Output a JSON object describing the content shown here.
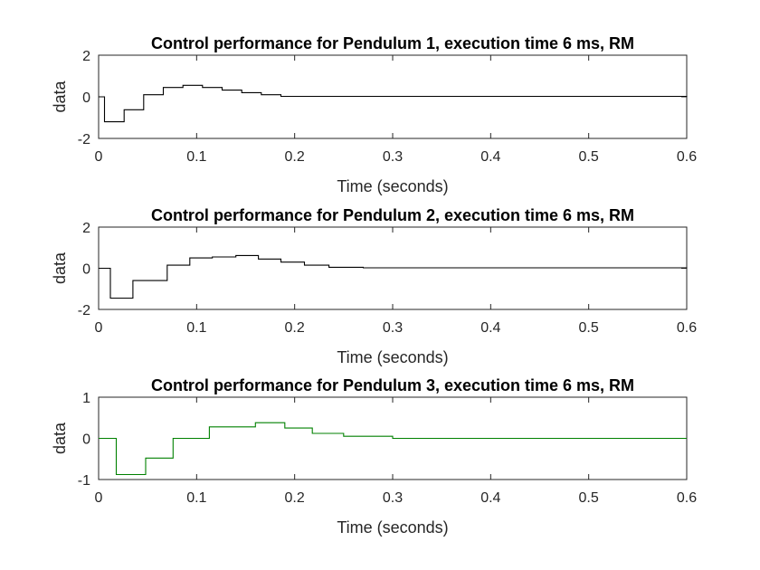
{
  "chart_data": [
    {
      "type": "line",
      "title": "Control performance for Pendulum 1, execution time 6 ms, RM",
      "xlabel": "Time (seconds)",
      "ylabel": "data",
      "xlim": [
        0,
        0.6
      ],
      "ylim": [
        -2,
        2
      ],
      "xticks": [
        "0",
        "0.1",
        "0.2",
        "0.3",
        "0.4",
        "0.5",
        "0.6"
      ],
      "yticks": [
        "-2",
        "0",
        "2"
      ],
      "grid": false,
      "series": [
        {
          "color": "#000000",
          "x": [
            0,
            0.006,
            0.026,
            0.046,
            0.066,
            0.086,
            0.106,
            0.126,
            0.146,
            0.166,
            0.186,
            0.6
          ],
          "y": [
            0,
            -1.2,
            -0.62,
            0.1,
            0.45,
            0.55,
            0.45,
            0.32,
            0.2,
            0.1,
            0.02,
            0
          ]
        }
      ]
    },
    {
      "type": "line",
      "title": "Control performance for Pendulum 2, execution time 6 ms, RM",
      "xlabel": "Time (seconds)",
      "ylabel": "data",
      "xlim": [
        0,
        0.6
      ],
      "ylim": [
        -2,
        2
      ],
      "xticks": [
        "0",
        "0.1",
        "0.2",
        "0.3",
        "0.4",
        "0.5",
        "0.6"
      ],
      "yticks": [
        "-2",
        "0",
        "2"
      ],
      "grid": false,
      "series": [
        {
          "color": "#000000",
          "x": [
            0,
            0.012,
            0.035,
            0.07,
            0.093,
            0.116,
            0.14,
            0.163,
            0.186,
            0.21,
            0.235,
            0.27,
            0.6
          ],
          "y": [
            0,
            -1.45,
            -0.6,
            0.15,
            0.5,
            0.55,
            0.62,
            0.45,
            0.3,
            0.15,
            0.05,
            0.02,
            0
          ]
        }
      ]
    },
    {
      "type": "line",
      "title": "Control performance for Pendulum 3, execution time 6 ms, RM",
      "xlabel": "Time (seconds)",
      "ylabel": "data",
      "xlim": [
        0,
        0.6
      ],
      "ylim": [
        -1,
        1
      ],
      "xticks": [
        "0",
        "0.1",
        "0.2",
        "0.3",
        "0.4",
        "0.5",
        "0.6"
      ],
      "yticks": [
        "-1",
        "0",
        "1"
      ],
      "grid": false,
      "series": [
        {
          "color": "#008000",
          "x": [
            0,
            0.018,
            0.048,
            0.076,
            0.113,
            0.16,
            0.19,
            0.218,
            0.25,
            0.3,
            0.6
          ],
          "y": [
            0,
            -0.88,
            -0.48,
            0,
            0.28,
            0.38,
            0.25,
            0.12,
            0.05,
            0,
            0
          ]
        }
      ]
    }
  ]
}
